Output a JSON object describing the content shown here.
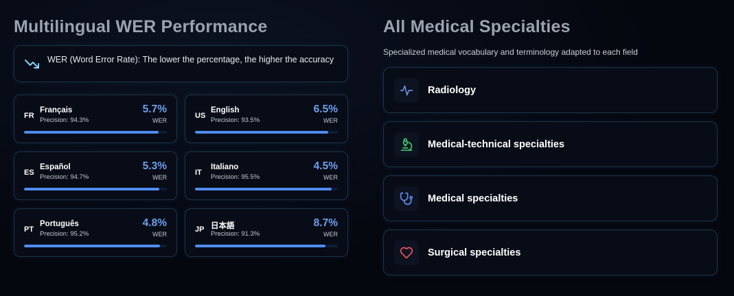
{
  "wer_section": {
    "title": "Multilingual WER Performance",
    "info": {
      "icon": "trending-down-icon",
      "accent_color": "#7fd4ff",
      "text": "WER (Word Error Rate): The lower the percentage, the higher the accuracy"
    },
    "wer_label": "WER",
    "languages": [
      {
        "code": "FR",
        "name": "Français",
        "precision": "Precision: 94.3%",
        "wer": "5.7%",
        "progress": 0.943
      },
      {
        "code": "US",
        "name": "English",
        "precision": "Precision: 93.5%",
        "wer": "6.5%",
        "progress": 0.935
      },
      {
        "code": "ES",
        "name": "Español",
        "precision": "Precision: 94.7%",
        "wer": "5.3%",
        "progress": 0.947
      },
      {
        "code": "IT",
        "name": "Italiano",
        "precision": "Precision: 95.5%",
        "wer": "4.5%",
        "progress": 0.955
      },
      {
        "code": "PT",
        "name": "Português",
        "precision": "Precision: 95.2%",
        "wer": "4.8%",
        "progress": 0.952
      },
      {
        "code": "JP",
        "name": "日本語",
        "precision": "Precision: 91.3%",
        "wer": "8.7%",
        "progress": 0.913
      }
    ]
  },
  "specialties_section": {
    "title": "All Medical Specialties",
    "subtitle": "Specialized medical vocabulary and terminology adapted to each field",
    "items": [
      {
        "label": "Radiology",
        "icon": "activity-icon",
        "color": "#6b8fd6"
      },
      {
        "label": "Medical-technical specialties",
        "icon": "microscope-icon",
        "color": "#3fc46a"
      },
      {
        "label": "Medical specialties",
        "icon": "stethoscope-icon",
        "color": "#5b8ff0"
      },
      {
        "label": "Surgical specialties",
        "icon": "heart-icon",
        "color": "#f0535b"
      }
    ]
  },
  "colors": {
    "accent_blue": "#6d9ff0",
    "bar_fill": "#4f8cf0",
    "card_border": "#1d3447",
    "title_gray": "#9aa3ae"
  }
}
